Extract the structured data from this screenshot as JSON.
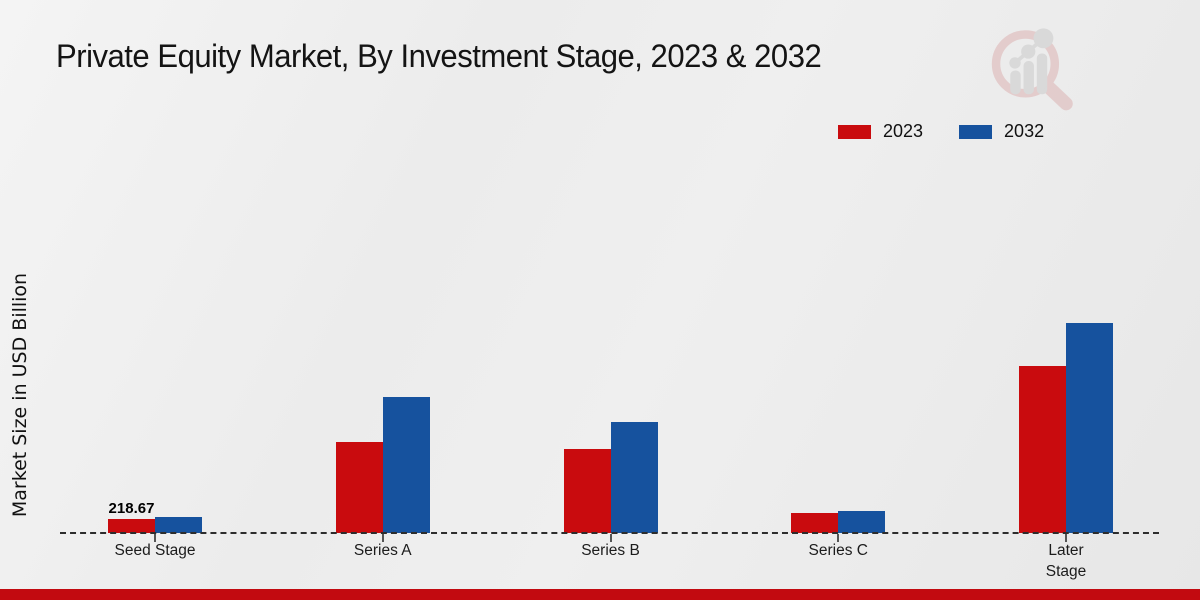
{
  "page": {
    "title": "Private Equity Market, By Investment Stage, 2023 & 2032",
    "ylabel": "Market Size in USD Billion",
    "colors": {
      "series_2023": "#c90b0e",
      "series_2032": "#16529e",
      "footer_strip": "#c20a10",
      "baseline": "#2d2d2d",
      "logo_glass": "#d9a7a7",
      "logo_bars": "#c3c3c3"
    }
  },
  "legend": {
    "items": [
      {
        "label": "2023",
        "color": "#c90b0e"
      },
      {
        "label": "2032",
        "color": "#16529e"
      }
    ]
  },
  "chart_data": {
    "type": "bar",
    "title": "Private Equity Market, By Investment Stage, 2023 & 2032",
    "xlabel": "",
    "ylabel": "Market Size in USD Billion",
    "categories": [
      "Seed Stage",
      "Series A",
      "Series B",
      "Series C",
      "Later Stage"
    ],
    "series": [
      {
        "name": "2023",
        "color": "#c90b0e",
        "values": [
          218.67,
          1375,
          1270,
          300,
          2520
        ]
      },
      {
        "name": "2032",
        "color": "#16529e",
        "values": [
          245,
          2045,
          1670,
          332,
          3160
        ]
      }
    ],
    "value_labels": [
      {
        "series_index": 0,
        "category_index": 0,
        "text": "218.67"
      }
    ],
    "ylim": [
      0,
      3300
    ],
    "grid": false,
    "legend_position": "top-right",
    "baseline_style": "dashed",
    "note": "Only the Seed Stage 2023 bar is labeled (218.67); other values estimated from bar heights."
  }
}
